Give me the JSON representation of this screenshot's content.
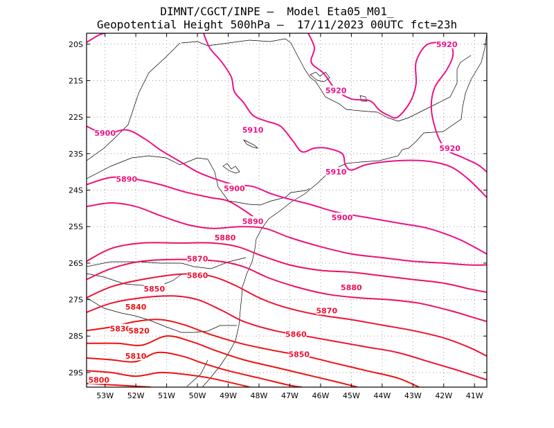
{
  "header": {
    "line1": "DIMNT/CGCT/INPE –  Model Eta05_M01_",
    "line2": "Geopotential Height 500hPa –  17/11/2023 00UTC fct=23h"
  },
  "map": {
    "lon_range": [
      -53.6,
      -40.6
    ],
    "lat_range": [
      -29.4,
      -19.7
    ],
    "x_ticks": [
      {
        "lon": -53,
        "label": "53W"
      },
      {
        "lon": -52,
        "label": "52W"
      },
      {
        "lon": -51,
        "label": "51W"
      },
      {
        "lon": -50,
        "label": "50W"
      },
      {
        "lon": -49,
        "label": "49W"
      },
      {
        "lon": -48,
        "label": "48W"
      },
      {
        "lon": -47,
        "label": "47W"
      },
      {
        "lon": -46,
        "label": "46W"
      },
      {
        "lon": -45,
        "label": "45W"
      },
      {
        "lon": -44,
        "label": "44W"
      },
      {
        "lon": -43,
        "label": "43W"
      },
      {
        "lon": -42,
        "label": "42W"
      },
      {
        "lon": -41,
        "label": "41W"
      }
    ],
    "y_ticks": [
      {
        "lat": -20,
        "label": "20S"
      },
      {
        "lat": -21,
        "label": "21S"
      },
      {
        "lat": -22,
        "label": "22S"
      },
      {
        "lat": -23,
        "label": "23S"
      },
      {
        "lat": -24,
        "label": "24S"
      },
      {
        "lat": -25,
        "label": "25S"
      },
      {
        "lat": -26,
        "label": "26S"
      },
      {
        "lat": -27,
        "label": "27S"
      },
      {
        "lat": -28,
        "label": "28S"
      },
      {
        "lat": -29,
        "label": "29S"
      }
    ],
    "grid": true,
    "colors": {
      "contour_high": "#ee1188",
      "contour_low": "#ee1111",
      "boundary": "#000000",
      "grid": "#999999"
    }
  },
  "chart_data": {
    "type": "contour",
    "variable": "Geopotential Height 500hPa",
    "interval": 10,
    "contours": [
      {
        "level": 5800,
        "color": "#ee1111",
        "points": [
          [
            -53.6,
            -29.3
          ],
          [
            -52.5,
            -29.35
          ],
          [
            -51.5,
            -29.4
          ]
        ]
      },
      {
        "level": 5810,
        "color": "#ee1111",
        "points": [
          [
            -53.6,
            -28.95
          ],
          [
            -52.8,
            -29.0
          ],
          [
            -52.0,
            -29.1
          ],
          [
            -51.2,
            -29.0
          ],
          [
            -50.4,
            -29.05
          ],
          [
            -49.6,
            -29.15
          ],
          [
            -48.8,
            -29.3
          ],
          [
            -48.3,
            -29.4
          ]
        ]
      },
      {
        "level": 5820,
        "color": "#ee1111",
        "points": [
          [
            -53.6,
            -28.6
          ],
          [
            -52.8,
            -28.65
          ],
          [
            -52.0,
            -28.7
          ],
          [
            -51.3,
            -28.45
          ],
          [
            -50.5,
            -28.55
          ],
          [
            -49.8,
            -28.75
          ],
          [
            -49.0,
            -28.95
          ],
          [
            -48.0,
            -29.15
          ],
          [
            -47.0,
            -29.35
          ],
          [
            -46.6,
            -29.4
          ]
        ]
      },
      {
        "level": 5830,
        "color": "#ee1111",
        "points": [
          [
            -53.6,
            -28.2
          ],
          [
            -52.6,
            -28.2
          ],
          [
            -51.8,
            -28.25
          ],
          [
            -51.0,
            -28.0
          ],
          [
            -50.2,
            -28.15
          ],
          [
            -49.4,
            -28.4
          ],
          [
            -48.5,
            -28.65
          ],
          [
            -47.5,
            -28.85
          ],
          [
            -46.5,
            -29.05
          ],
          [
            -45.5,
            -29.25
          ],
          [
            -44.8,
            -29.4
          ]
        ]
      },
      {
        "level": 5840,
        "color": "#ee1111",
        "points": [
          [
            -53.6,
            -27.85
          ],
          [
            -52.8,
            -27.75
          ],
          [
            -52.0,
            -27.6
          ],
          [
            -51.2,
            -27.55
          ],
          [
            -50.4,
            -27.7
          ],
          [
            -49.6,
            -27.95
          ],
          [
            -48.6,
            -28.2
          ],
          [
            -47.5,
            -28.4
          ],
          [
            -46.5,
            -28.55
          ],
          [
            -45.5,
            -28.75
          ],
          [
            -44.5,
            -28.95
          ],
          [
            -43.5,
            -29.15
          ],
          [
            -42.8,
            -29.4
          ]
        ]
      },
      {
        "level": 5850,
        "color": "#ee1133",
        "points": [
          [
            -53.6,
            -27.35
          ],
          [
            -52.8,
            -27.1
          ],
          [
            -51.8,
            -26.95
          ],
          [
            -50.8,
            -26.9
          ],
          [
            -50.0,
            -27.0
          ],
          [
            -49.2,
            -27.3
          ],
          [
            -48.5,
            -27.6
          ],
          [
            -47.5,
            -27.85
          ],
          [
            -46.5,
            -28.0
          ],
          [
            -45.5,
            -28.15
          ],
          [
            -44.5,
            -28.3
          ],
          [
            -43.5,
            -28.45
          ],
          [
            -42.5,
            -28.7
          ],
          [
            -41.5,
            -28.95
          ],
          [
            -40.6,
            -29.2
          ]
        ]
      },
      {
        "level": 5860,
        "color": "#ee1133",
        "points": [
          [
            -53.6,
            -26.95
          ],
          [
            -52.8,
            -26.65
          ],
          [
            -51.8,
            -26.45
          ],
          [
            -50.5,
            -26.3
          ],
          [
            -49.6,
            -26.35
          ],
          [
            -48.8,
            -26.6
          ],
          [
            -48.0,
            -26.95
          ],
          [
            -47.2,
            -27.2
          ],
          [
            -46.2,
            -27.4
          ],
          [
            -45.0,
            -27.55
          ],
          [
            -44.0,
            -27.7
          ],
          [
            -43.0,
            -27.85
          ],
          [
            -42.0,
            -28.05
          ],
          [
            -41.2,
            -28.3
          ],
          [
            -40.6,
            -28.55
          ]
        ]
      },
      {
        "level": 5870,
        "color": "#ee1155",
        "points": [
          [
            -53.6,
            -26.45
          ],
          [
            -52.8,
            -26.15
          ],
          [
            -51.8,
            -25.95
          ],
          [
            -50.5,
            -25.9
          ],
          [
            -49.3,
            -25.95
          ],
          [
            -48.5,
            -26.1
          ],
          [
            -47.7,
            -26.4
          ],
          [
            -46.8,
            -26.65
          ],
          [
            -45.8,
            -26.85
          ],
          [
            -44.8,
            -26.95
          ],
          [
            -43.8,
            -27.0
          ],
          [
            -42.8,
            -27.1
          ],
          [
            -41.8,
            -27.3
          ],
          [
            -41.0,
            -27.5
          ],
          [
            -40.6,
            -27.6
          ]
        ]
      },
      {
        "level": 5880,
        "color": "#ee1155",
        "points": [
          [
            -53.6,
            -25.95
          ],
          [
            -52.8,
            -25.6
          ],
          [
            -51.8,
            -25.45
          ],
          [
            -50.6,
            -25.45
          ],
          [
            -49.5,
            -25.45
          ],
          [
            -48.7,
            -25.55
          ],
          [
            -47.9,
            -25.8
          ],
          [
            -47.0,
            -26.05
          ],
          [
            -46.0,
            -26.2
          ],
          [
            -45.0,
            -26.25
          ],
          [
            -44.0,
            -26.35
          ],
          [
            -43.0,
            -26.45
          ],
          [
            -42.0,
            -26.55
          ],
          [
            -41.2,
            -26.7
          ],
          [
            -40.6,
            -26.8
          ]
        ]
      },
      {
        "level": 5890,
        "color": "#ee1177",
        "points": [
          [
            -53.6,
            -24.45
          ],
          [
            -52.8,
            -24.35
          ],
          [
            -52.0,
            -24.45
          ],
          [
            -51.2,
            -24.7
          ],
          [
            -50.3,
            -24.95
          ],
          [
            -49.5,
            -25.05
          ],
          [
            -48.6,
            -25.0
          ],
          [
            -47.8,
            -25.05
          ],
          [
            -47.0,
            -25.3
          ],
          [
            -46.0,
            -25.55
          ],
          [
            -45.0,
            -25.75
          ],
          [
            -44.0,
            -25.85
          ],
          [
            -43.0,
            -25.95
          ],
          [
            -42.0,
            -26.0
          ],
          [
            -41.2,
            -26.05
          ],
          [
            -40.6,
            -26.05
          ]
        ]
      },
      {
        "level": 5890,
        "color": "#ee1177",
        "points": [
          [
            -53.6,
            -23.85
          ],
          [
            -52.8,
            -23.65
          ],
          [
            -52.0,
            -23.7
          ],
          [
            -51.2,
            -23.85
          ],
          [
            -50.4,
            -24.05
          ],
          [
            -49.6,
            -24.2
          ],
          [
            -49.0,
            -24.3
          ],
          [
            -48.4,
            -24.6
          ],
          [
            -48.0,
            -24.85
          ]
        ]
      },
      {
        "level": 5900,
        "color": "#ee1188",
        "points": [
          [
            -53.6,
            -22.25
          ],
          [
            -53.0,
            -22.45
          ],
          [
            -52.3,
            -22.35
          ],
          [
            -51.7,
            -22.6
          ],
          [
            -51.2,
            -22.9
          ],
          [
            -50.6,
            -23.2
          ],
          [
            -50.0,
            -23.5
          ],
          [
            -49.4,
            -23.7
          ],
          [
            -48.8,
            -23.85
          ],
          [
            -48.2,
            -23.9
          ],
          [
            -47.6,
            -24.1
          ],
          [
            -47.0,
            -24.25
          ],
          [
            -46.3,
            -24.4
          ],
          [
            -45.5,
            -24.6
          ],
          [
            -44.5,
            -24.75
          ],
          [
            -43.5,
            -24.9
          ],
          [
            -42.5,
            -25.05
          ],
          [
            -41.5,
            -25.35
          ],
          [
            -40.6,
            -25.75
          ]
        ]
      },
      {
        "level": 5910,
        "color": "#ee1188",
        "points": [
          [
            -49.8,
            -19.7
          ],
          [
            -49.6,
            -20.1
          ],
          [
            -49.2,
            -20.5
          ],
          [
            -48.9,
            -20.9
          ],
          [
            -48.8,
            -21.3
          ],
          [
            -48.5,
            -21.6
          ],
          [
            -48.2,
            -21.95
          ],
          [
            -47.8,
            -22.1
          ],
          [
            -47.3,
            -22.25
          ],
          [
            -46.9,
            -22.65
          ],
          [
            -46.6,
            -22.95
          ],
          [
            -46.2,
            -22.85
          ],
          [
            -45.8,
            -22.85
          ],
          [
            -45.3,
            -23.0
          ],
          [
            -45.2,
            -23.3
          ],
          [
            -45.0,
            -23.45
          ],
          [
            -44.5,
            -23.3
          ],
          [
            -43.6,
            -23.2
          ],
          [
            -42.6,
            -23.2
          ],
          [
            -41.8,
            -23.35
          ],
          [
            -41.2,
            -23.7
          ],
          [
            -40.6,
            -24.2
          ]
        ]
      },
      {
        "level": 5920,
        "color": "#ee1188",
        "points": [
          [
            -46.4,
            -19.7
          ],
          [
            -46.2,
            -20.1
          ],
          [
            -46.3,
            -20.5
          ],
          [
            -45.9,
            -20.8
          ],
          [
            -45.5,
            -21.25
          ],
          [
            -45.0,
            -21.5
          ],
          [
            -44.4,
            -21.55
          ],
          [
            -44.1,
            -21.8
          ],
          [
            -43.8,
            -21.95
          ],
          [
            -43.5,
            -22.0
          ],
          [
            -43.1,
            -21.6
          ],
          [
            -42.9,
            -21.1
          ],
          [
            -42.9,
            -20.5
          ],
          [
            -42.6,
            -20.05
          ],
          [
            -42.2,
            -19.95
          ],
          [
            -41.8,
            -20.0
          ],
          [
            -41.7,
            -20.3
          ],
          [
            -41.9,
            -20.7
          ],
          [
            -42.3,
            -21.2
          ],
          [
            -42.4,
            -21.8
          ],
          [
            -42.2,
            -22.5
          ],
          [
            -41.9,
            -22.9
          ],
          [
            -41.4,
            -23.1
          ],
          [
            -40.9,
            -23.3
          ],
          [
            -40.6,
            -23.5
          ]
        ]
      },
      {
        "level": 5920,
        "color": "#ee1188",
        "points": [
          [
            -53.6,
            -19.95
          ],
          [
            -53.2,
            -19.75
          ],
          [
            -53.0,
            -19.7
          ]
        ]
      }
    ],
    "contour_labels": [
      {
        "text": "5920",
        "lon": -41.9,
        "lat": -20.0,
        "color": "#ee1188"
      },
      {
        "text": "5920",
        "lon": -45.5,
        "lat": -21.27,
        "color": "#ee1188"
      },
      {
        "text": "5910",
        "lon": -48.2,
        "lat": -22.35,
        "color": "#ee1188"
      },
      {
        "text": "5900",
        "lon": -53.0,
        "lat": -22.43,
        "color": "#ee1188"
      },
      {
        "text": "5920",
        "lon": -41.8,
        "lat": -22.85,
        "color": "#ee1188"
      },
      {
        "text": "5910",
        "lon": -45.5,
        "lat": -23.5,
        "color": "#ee1188"
      },
      {
        "text": "5890",
        "lon": -52.3,
        "lat": -23.7,
        "color": "#ee1177"
      },
      {
        "text": "5900",
        "lon": -48.8,
        "lat": -23.95,
        "color": "#ee1177"
      },
      {
        "text": "5900",
        "lon": -45.3,
        "lat": -24.75,
        "color": "#ee1177"
      },
      {
        "text": "5890",
        "lon": -48.2,
        "lat": -24.85,
        "color": "#ee1177"
      },
      {
        "text": "5880",
        "lon": -49.1,
        "lat": -25.3,
        "color": "#ee1155"
      },
      {
        "text": "5870",
        "lon": -50.0,
        "lat": -25.88,
        "color": "#ee1155"
      },
      {
        "text": "5860",
        "lon": -50.0,
        "lat": -26.33,
        "color": "#ee1133"
      },
      {
        "text": "5880",
        "lon": -45.0,
        "lat": -26.67,
        "color": "#ee1155"
      },
      {
        "text": "5850",
        "lon": -51.4,
        "lat": -26.7,
        "color": "#ee1133"
      },
      {
        "text": "5840",
        "lon": -52.0,
        "lat": -27.2,
        "color": "#ee1111"
      },
      {
        "text": "5870",
        "lon": -45.8,
        "lat": -27.3,
        "color": "#ee1133"
      },
      {
        "text": "5830",
        "lon": -52.5,
        "lat": -27.8,
        "color": "#ee1111"
      },
      {
        "text": "5820",
        "lon": -51.9,
        "lat": -27.85,
        "color": "#ee1111"
      },
      {
        "text": "5860",
        "lon": -46.8,
        "lat": -27.95,
        "color": "#ee1133"
      },
      {
        "text": "5810",
        "lon": -52.0,
        "lat": -28.55,
        "color": "#ee1111"
      },
      {
        "text": "5850",
        "lon": -46.7,
        "lat": -28.5,
        "color": "#ee1133"
      },
      {
        "text": "5800",
        "lon": -53.2,
        "lat": -29.2,
        "color": "#ee1111"
      }
    ]
  }
}
